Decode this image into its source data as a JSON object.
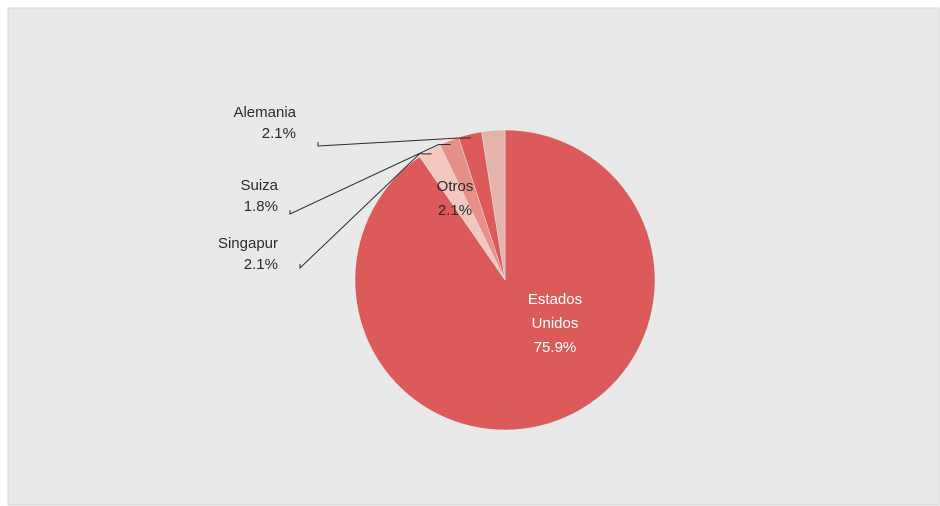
{
  "chart_data": {
    "type": "pie",
    "categories": [
      "Estados Unidos",
      "Singapur",
      "Suiza",
      "Alemania",
      "Otros"
    ],
    "values": [
      75.9,
      2.1,
      1.8,
      2.1,
      2.1
    ],
    "value_labels": [
      "75.9%",
      "2.1%",
      "1.8%",
      "2.1%",
      "2.1%"
    ],
    "colors": [
      "#dc5b5a",
      "#f1c7be",
      "#e69087",
      "#dc5b5a",
      "#e4b3a9"
    ]
  }
}
